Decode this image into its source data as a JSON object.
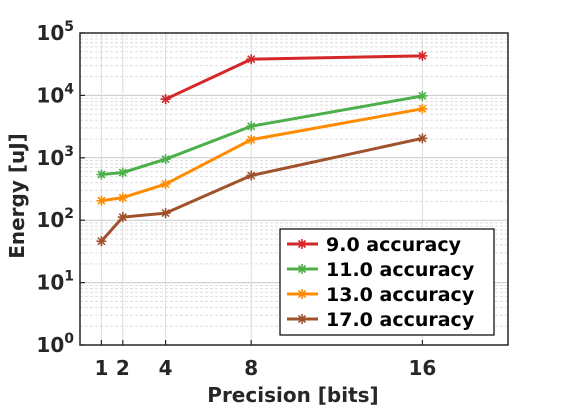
{
  "chart_data": {
    "type": "line",
    "xlabel": "Precision [bits]",
    "ylabel": "Energy [uJ]",
    "x_scale": "linear",
    "y_scale": "log",
    "xlim": [
      0,
      20
    ],
    "ylim": [
      1,
      100000
    ],
    "xticks": [
      1,
      2,
      4,
      8,
      16
    ],
    "yticks": [
      {
        "value": 1,
        "base": "10",
        "exp": "0"
      },
      {
        "value": 10,
        "base": "10",
        "exp": "1"
      },
      {
        "value": 100,
        "base": "10",
        "exp": "2"
      },
      {
        "value": 1000,
        "base": "10",
        "exp": "3"
      },
      {
        "value": 10000,
        "base": "10",
        "exp": "4"
      },
      {
        "value": 100000,
        "base": "10",
        "exp": "5"
      }
    ],
    "grid": true,
    "legend_position": "bottom-right",
    "series": [
      {
        "name": "9.0 accuracy",
        "color": "#d62728",
        "marker": "star",
        "x": [
          4,
          8,
          16
        ],
        "y": [
          8700,
          38000,
          43000
        ]
      },
      {
        "name": "11.0 accuracy",
        "color": "#4daf4a",
        "marker": "star",
        "x": [
          1,
          2,
          4,
          8,
          16
        ],
        "y": [
          540,
          580,
          950,
          3200,
          9800
        ]
      },
      {
        "name": "13.0 accuracy",
        "color": "#ff8c00",
        "marker": "star",
        "x": [
          1,
          2,
          4,
          8,
          16
        ],
        "y": [
          205,
          230,
          380,
          1950,
          6100
        ]
      },
      {
        "name": "17.0 accuracy",
        "color": "#a0522d",
        "marker": "star",
        "x": [
          1,
          2,
          4,
          8,
          16
        ],
        "y": [
          46,
          112,
          130,
          520,
          2050
        ]
      }
    ]
  }
}
